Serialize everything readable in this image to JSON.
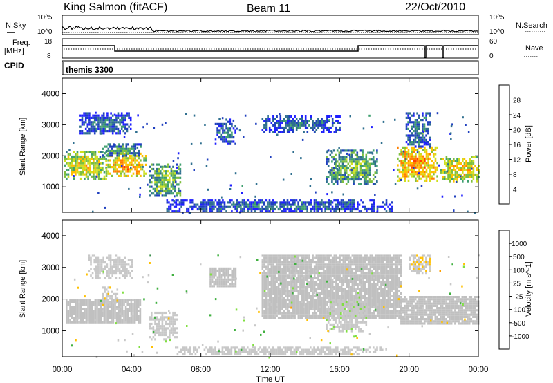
{
  "header": {
    "station": "King Salmon (fitACF)",
    "beam": "Beam 11",
    "date": "22/Oct/2010"
  },
  "strip": {
    "nsky_label": "N.Sky",
    "nsearch_label": "N.Search",
    "freq_label": "Freq.",
    "freq_unit": "[MHz]",
    "nave_label": "Nave",
    "cpid_label": "CPID",
    "cpid_value": "themis 3300",
    "noise_ticks": [
      "10^5",
      "10^0"
    ],
    "freq_ticks": [
      "18",
      "8"
    ],
    "nave_ticks": [
      "60",
      "0"
    ]
  },
  "colors": {
    "power_scale": [
      "#1f1fff",
      "#1f3fbf",
      "#2f6f8f",
      "#3f9f6f",
      "#7fbf3f",
      "#cfdf1f",
      "#ffbf00",
      "#ff7f00",
      "#ff3f00",
      "#ff0000"
    ],
    "velocity_scale": [
      "#ff1f1f",
      "#ff5f00",
      "#ff9f00",
      "#ffc000",
      "#c8c8c8",
      "#c8c8c8",
      "#80df40",
      "#40b040",
      "#3f8f4f",
      "#2f5faf",
      "#1f3fcf"
    ],
    "ground_scatter": "#c0c0c0"
  },
  "chart_data": [
    {
      "type": "heatmap",
      "name": "Power",
      "ylabel": "Slant Range [km]",
      "yticks": [
        "1000",
        "2000",
        "3000",
        "4000"
      ],
      "colorbar_label": "Power [dB]",
      "colorbar_ticks": [
        "4",
        "8",
        "12",
        "16",
        "20",
        "24",
        "28"
      ],
      "ylim": [
        180,
        4500
      ],
      "cbar_range": [
        0,
        32
      ],
      "regions": [
        {
          "t0": 0.1,
          "t1": 2.5,
          "r0": 1250,
          "r1": 2150,
          "v": 17
        },
        {
          "t0": 2.5,
          "t1": 4.8,
          "r0": 1350,
          "r1": 2100,
          "v": 20
        },
        {
          "t0": 2.3,
          "t1": 4.5,
          "r0": 2000,
          "r1": 2400,
          "v": 10
        },
        {
          "t0": 1.0,
          "t1": 4.0,
          "r0": 2700,
          "r1": 3400,
          "v": 6
        },
        {
          "t0": 5.0,
          "t1": 6.8,
          "r0": 700,
          "r1": 1750,
          "v": 13
        },
        {
          "t0": 8.8,
          "t1": 10.0,
          "r0": 2400,
          "r1": 3200,
          "v": 7
        },
        {
          "t0": 11.5,
          "t1": 16.0,
          "r0": 2800,
          "r1": 3300,
          "v": 6
        },
        {
          "t0": 15.2,
          "t1": 18.2,
          "r0": 1100,
          "r1": 2200,
          "v": 12
        },
        {
          "t0": 19.3,
          "t1": 21.6,
          "r0": 1200,
          "r1": 2300,
          "v": 21
        },
        {
          "t0": 19.8,
          "t1": 21.2,
          "r0": 2300,
          "r1": 3400,
          "v": 8
        },
        {
          "t0": 21.8,
          "t1": 24.0,
          "r0": 1150,
          "r1": 2000,
          "v": 18
        },
        {
          "t0": 6.0,
          "t1": 19.0,
          "r0": 230,
          "r1": 600,
          "v": 6
        }
      ]
    },
    {
      "type": "heatmap",
      "name": "Velocity",
      "ylabel": "Slant Range [km]",
      "yticks": [
        "1000",
        "2000",
        "3000",
        "4000"
      ],
      "colorbar_label": "Velocity [m s^-1]",
      "colorbar_ticks": [
        "1000",
        "500",
        "100",
        "25",
        "-25",
        "-100",
        "-500",
        "-1000"
      ],
      "ylim": [
        180,
        4500
      ],
      "cbar_range": [
        -1300,
        1300
      ],
      "regions": [
        {
          "t0": 0.2,
          "t1": 4.5,
          "r0": 1250,
          "r1": 2000,
          "v": 0,
          "gs": true
        },
        {
          "t0": 2.3,
          "t1": 3.2,
          "r0": 1800,
          "r1": 2400,
          "v": -300
        },
        {
          "t0": 1.5,
          "t1": 4.0,
          "r0": 2700,
          "r1": 3400,
          "v": -200
        },
        {
          "t0": 5.0,
          "t1": 6.6,
          "r0": 700,
          "r1": 1600,
          "v": -250
        },
        {
          "t0": 8.5,
          "t1": 10.0,
          "r0": 2400,
          "r1": 3000,
          "v": 0,
          "gs": true
        },
        {
          "t0": 11.5,
          "t1": 19.5,
          "r0": 1400,
          "r1": 3400,
          "v": 0,
          "gs": true
        },
        {
          "t0": 15.2,
          "t1": 17.5,
          "r0": 1000,
          "r1": 2000,
          "v": 90
        },
        {
          "t0": 19.5,
          "t1": 24.0,
          "r0": 1200,
          "r1": 2100,
          "v": 0,
          "gs": true
        },
        {
          "t0": 20.0,
          "t1": 21.2,
          "r0": 2800,
          "r1": 3400,
          "v": -300
        },
        {
          "t0": 6.5,
          "t1": 18.5,
          "r0": 240,
          "r1": 500,
          "v": -80
        }
      ]
    }
  ],
  "time_axis": {
    "ticks": [
      "00:00",
      "04:00",
      "08:00",
      "12:00",
      "16:00",
      "20:00",
      "00:00"
    ],
    "label": "Time UT"
  }
}
